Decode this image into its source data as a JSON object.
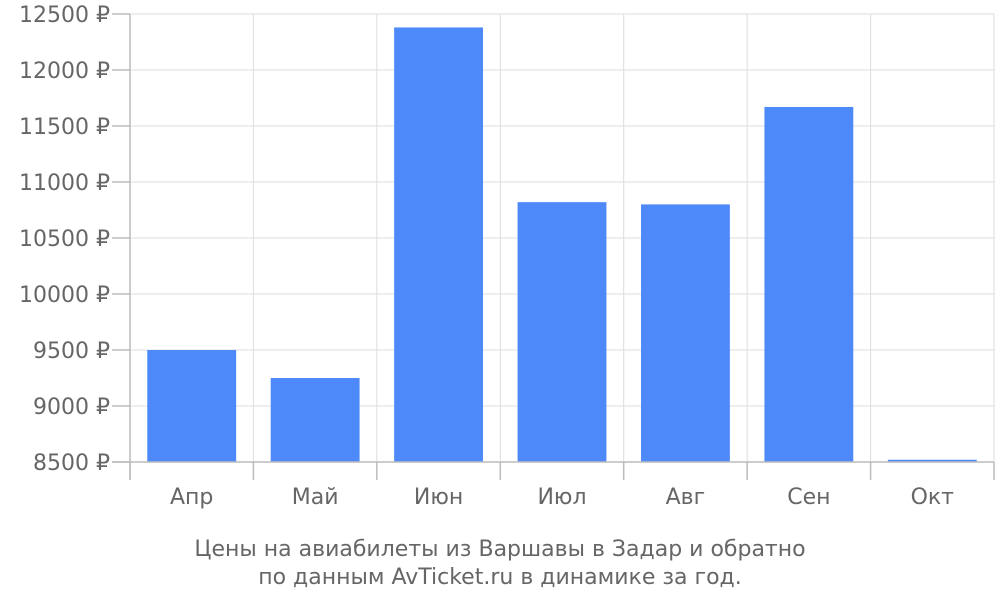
{
  "chart_data": {
    "type": "bar",
    "categories": [
      "Апр",
      "Май",
      "Июн",
      "Июл",
      "Авг",
      "Сен",
      "Окт"
    ],
    "values": [
      9500,
      9250,
      12380,
      10820,
      10800,
      11670,
      8520
    ],
    "ylim": [
      8500,
      12500
    ],
    "yticks": [
      8500,
      9000,
      9500,
      10000,
      10500,
      11000,
      11500,
      12000,
      12500
    ],
    "currency_suffix": " ₽",
    "grid": true,
    "bar_color": "#4d89f9",
    "caption_lines": [
      "Цены на авиабилеты из Варшавы в Задар и обратно",
      "по данным AvTicket.ru в динамике за год."
    ]
  }
}
